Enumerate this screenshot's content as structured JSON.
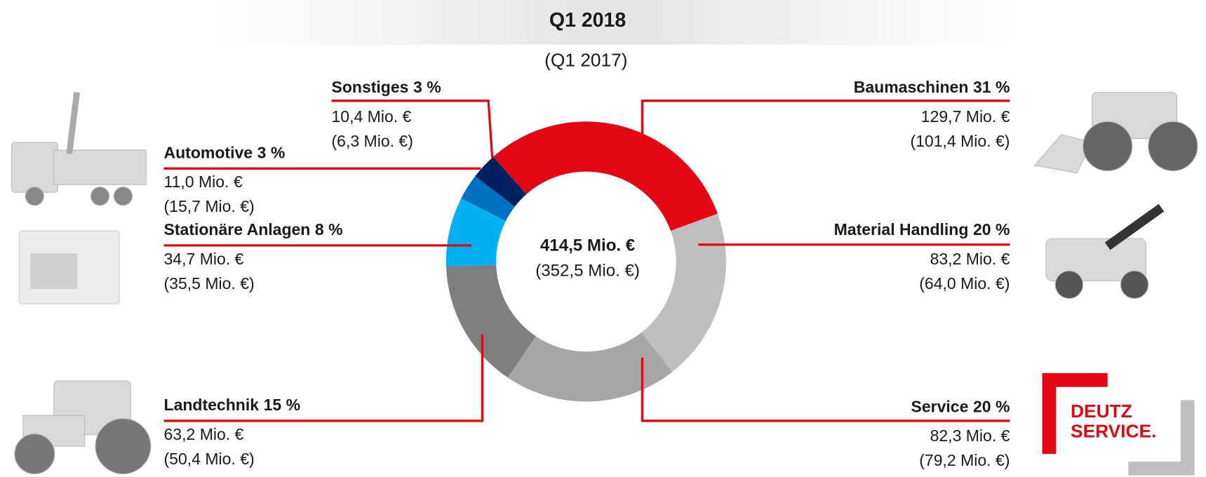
{
  "chart_data": {
    "type": "pie",
    "donut": true,
    "title": "Q1 2018",
    "subtitle": "(Q1 2017)",
    "center_label": "414,5 Mio. €",
    "center_sublabel": "(352,5 Mio. €)",
    "categories": [
      "Baumaschinen",
      "Material Handling",
      "Service",
      "Landtechnik",
      "Stationäre Anlagen",
      "Automotive",
      "Sonstiges"
    ],
    "values": [
      31,
      20,
      20,
      15,
      8,
      3,
      3
    ],
    "value_labels": [
      "31 %",
      "20 %",
      "20 %",
      "15 %",
      "8 %",
      "3 %",
      "3 %"
    ],
    "colors": [
      "#e30613",
      "#bfbfbf",
      "#a6a6a6",
      "#7f7f7f",
      "#00b0f0",
      "#0070c0",
      "#002060"
    ],
    "amounts": [
      "129,7 Mio. €",
      "83,2 Mio. €",
      "82,3 Mio. €",
      "63,2 Mio. €",
      "34,7 Mio. €",
      "11,0 Mio. €",
      "10,4 Mio. €"
    ],
    "prior_amounts": [
      "(101,4 Mio. €)",
      "(64,0 Mio. €)",
      "(79,2 Mio. €)",
      "(50,4 Mio. €)",
      "(35,5 Mio. €)",
      "(15,7 Mio. €)",
      "(6,3 Mio. €)"
    ]
  },
  "logo": {
    "lines": [
      "DEUTZ",
      "SERVICE."
    ]
  }
}
